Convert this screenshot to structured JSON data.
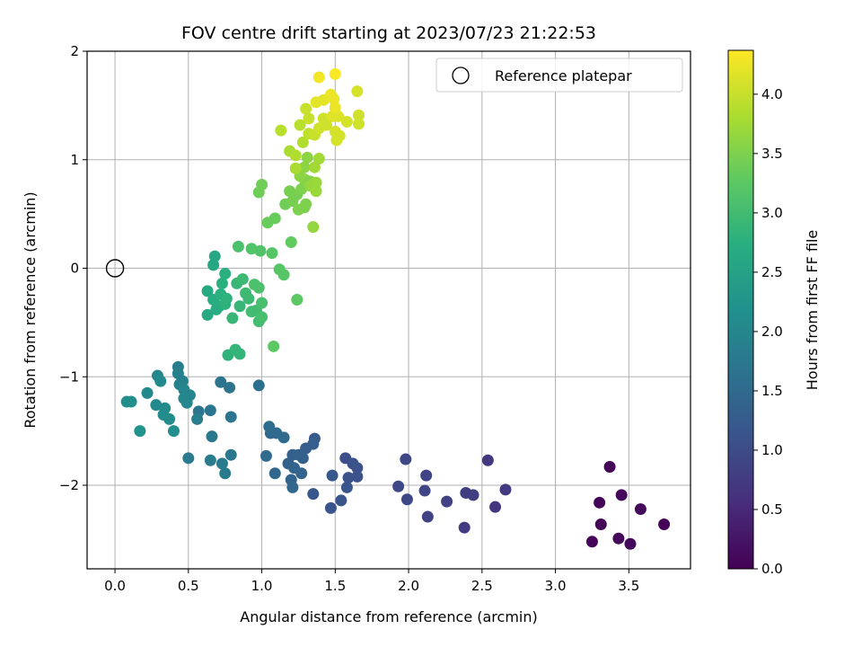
{
  "chart_data": {
    "type": "scatter",
    "title": "FOV centre drift starting at 2023/07/23 21:22:53",
    "xlabel": "Angular distance from reference (arcmin)",
    "ylabel": "Rotation from reference (arcmin)",
    "xlim": [
      -0.19,
      3.92
    ],
    "ylim": [
      -2.77,
      2.0
    ],
    "xticks": [
      0.0,
      0.5,
      1.0,
      1.5,
      2.0,
      2.5,
      3.0,
      3.5
    ],
    "xtick_labels": [
      "0.0",
      "0.5",
      "1.0",
      "1.5",
      "2.0",
      "2.5",
      "3.0",
      "3.5"
    ],
    "yticks": [
      -2,
      -1,
      0,
      1,
      2
    ],
    "ytick_labels": [
      "−2",
      "−1",
      "0",
      "1",
      "2"
    ],
    "grid": true,
    "legend": {
      "placement": "top-right",
      "label": "Reference platepar"
    },
    "reference_point": {
      "x": 0.0,
      "y": 0.0
    },
    "colorbar": {
      "label": "Hours from first FF file",
      "range": [
        0.0,
        4.37
      ],
      "ticks": [
        0.0,
        0.5,
        1.0,
        1.5,
        2.0,
        2.5,
        3.0,
        3.5,
        4.0
      ],
      "tick_labels": [
        "0.0",
        "0.5",
        "1.0",
        "1.5",
        "2.0",
        "2.5",
        "3.0",
        "3.5",
        "4.0"
      ],
      "colormap": "viridis"
    },
    "points": [
      {
        "x": 3.37,
        "y": -1.83,
        "t": 0.05
      },
      {
        "x": 3.3,
        "y": -2.16,
        "t": 0.05
      },
      {
        "x": 3.45,
        "y": -2.09,
        "t": 0.1
      },
      {
        "x": 3.58,
        "y": -2.22,
        "t": 0.1
      },
      {
        "x": 3.31,
        "y": -2.36,
        "t": 0.05
      },
      {
        "x": 3.25,
        "y": -2.52,
        "t": 0.05
      },
      {
        "x": 3.43,
        "y": -2.49,
        "t": 0.1
      },
      {
        "x": 3.51,
        "y": -2.54,
        "t": 0.1
      },
      {
        "x": 3.74,
        "y": -2.36,
        "t": 0.05
      },
      {
        "x": 2.54,
        "y": -1.77,
        "t": 0.7
      },
      {
        "x": 2.66,
        "y": -2.04,
        "t": 0.75
      },
      {
        "x": 2.59,
        "y": -2.2,
        "t": 0.7
      },
      {
        "x": 2.44,
        "y": -2.09,
        "t": 0.8
      },
      {
        "x": 2.39,
        "y": -2.07,
        "t": 0.8
      },
      {
        "x": 2.38,
        "y": -2.39,
        "t": 0.75
      },
      {
        "x": 2.26,
        "y": -2.15,
        "t": 0.85
      },
      {
        "x": 2.13,
        "y": -2.29,
        "t": 0.85
      },
      {
        "x": 2.11,
        "y": -2.05,
        "t": 0.9
      },
      {
        "x": 2.12,
        "y": -1.91,
        "t": 0.9
      },
      {
        "x": 1.98,
        "y": -1.76,
        "t": 0.95
      },
      {
        "x": 1.99,
        "y": -2.13,
        "t": 0.95
      },
      {
        "x": 1.93,
        "y": -2.01,
        "t": 0.95
      },
      {
        "x": 1.57,
        "y": -1.75,
        "t": 1.05
      },
      {
        "x": 1.62,
        "y": -1.8,
        "t": 1.1
      },
      {
        "x": 1.65,
        "y": -1.84,
        "t": 1.1
      },
      {
        "x": 1.65,
        "y": -1.92,
        "t": 1.1
      },
      {
        "x": 1.59,
        "y": -1.93,
        "t": 1.1
      },
      {
        "x": 1.58,
        "y": -2.02,
        "t": 1.15
      },
      {
        "x": 1.54,
        "y": -2.14,
        "t": 1.15
      },
      {
        "x": 1.47,
        "y": -2.21,
        "t": 1.15
      },
      {
        "x": 1.48,
        "y": -1.91,
        "t": 1.2
      },
      {
        "x": 1.35,
        "y": -2.08,
        "t": 1.2
      },
      {
        "x": 1.36,
        "y": -1.57,
        "t": 1.25
      },
      {
        "x": 1.35,
        "y": -1.62,
        "t": 1.3
      },
      {
        "x": 1.3,
        "y": -1.66,
        "t": 1.3
      },
      {
        "x": 1.28,
        "y": -1.75,
        "t": 1.35
      },
      {
        "x": 1.25,
        "y": -1.72,
        "t": 1.35
      },
      {
        "x": 1.21,
        "y": -1.72,
        "t": 1.35
      },
      {
        "x": 1.18,
        "y": -1.8,
        "t": 1.35
      },
      {
        "x": 1.22,
        "y": -1.84,
        "t": 1.4
      },
      {
        "x": 1.27,
        "y": -1.89,
        "t": 1.4
      },
      {
        "x": 1.2,
        "y": -1.95,
        "t": 1.4
      },
      {
        "x": 1.21,
        "y": -2.02,
        "t": 1.45
      },
      {
        "x": 1.09,
        "y": -1.89,
        "t": 1.45
      },
      {
        "x": 1.03,
        "y": -1.73,
        "t": 1.5
      },
      {
        "x": 1.06,
        "y": -1.52,
        "t": 1.5
      },
      {
        "x": 1.1,
        "y": -1.52,
        "t": 1.5
      },
      {
        "x": 1.15,
        "y": -1.56,
        "t": 1.5
      },
      {
        "x": 1.05,
        "y": -1.46,
        "t": 1.55
      },
      {
        "x": 0.98,
        "y": -1.08,
        "t": 1.6
      },
      {
        "x": 0.72,
        "y": -1.05,
        "t": 1.65
      },
      {
        "x": 0.78,
        "y": -1.1,
        "t": 1.65
      },
      {
        "x": 0.57,
        "y": -1.32,
        "t": 1.7
      },
      {
        "x": 0.65,
        "y": -1.31,
        "t": 1.7
      },
      {
        "x": 0.79,
        "y": -1.37,
        "t": 1.7
      },
      {
        "x": 0.66,
        "y": -1.55,
        "t": 1.75
      },
      {
        "x": 0.79,
        "y": -1.72,
        "t": 1.75
      },
      {
        "x": 0.73,
        "y": -1.8,
        "t": 1.8
      },
      {
        "x": 0.75,
        "y": -1.89,
        "t": 1.8
      },
      {
        "x": 0.65,
        "y": -1.77,
        "t": 1.8
      },
      {
        "x": 0.5,
        "y": -1.75,
        "t": 1.8
      },
      {
        "x": 0.56,
        "y": -1.39,
        "t": 1.85
      },
      {
        "x": 0.43,
        "y": -0.91,
        "t": 1.85
      },
      {
        "x": 0.43,
        "y": -0.97,
        "t": 1.9
      },
      {
        "x": 0.46,
        "y": -1.04,
        "t": 1.9
      },
      {
        "x": 0.44,
        "y": -1.07,
        "t": 1.9
      },
      {
        "x": 0.47,
        "y": -1.12,
        "t": 1.95
      },
      {
        "x": 0.51,
        "y": -1.17,
        "t": 1.95
      },
      {
        "x": 0.47,
        "y": -1.2,
        "t": 2.0
      },
      {
        "x": 0.49,
        "y": -1.24,
        "t": 2.0
      },
      {
        "x": 0.29,
        "y": -0.99,
        "t": 2.0
      },
      {
        "x": 0.31,
        "y": -1.04,
        "t": 2.05
      },
      {
        "x": 0.22,
        "y": -1.15,
        "t": 2.05
      },
      {
        "x": 0.28,
        "y": -1.26,
        "t": 2.05
      },
      {
        "x": 0.34,
        "y": -1.29,
        "t": 2.1
      },
      {
        "x": 0.33,
        "y": -1.35,
        "t": 2.1
      },
      {
        "x": 0.37,
        "y": -1.39,
        "t": 2.1
      },
      {
        "x": 0.4,
        "y": -1.5,
        "t": 2.15
      },
      {
        "x": 0.08,
        "y": -1.23,
        "t": 2.15
      },
      {
        "x": 0.11,
        "y": -1.23,
        "t": 2.15
      },
      {
        "x": 0.17,
        "y": -1.5,
        "t": 2.2
      },
      {
        "x": 0.68,
        "y": 0.11,
        "t": 2.6
      },
      {
        "x": 0.67,
        "y": 0.03,
        "t": 2.6
      },
      {
        "x": 0.63,
        "y": -0.21,
        "t": 2.65
      },
      {
        "x": 0.63,
        "y": -0.43,
        "t": 2.65
      },
      {
        "x": 0.67,
        "y": -0.29,
        "t": 2.7
      },
      {
        "x": 0.69,
        "y": -0.38,
        "t": 2.7
      },
      {
        "x": 0.71,
        "y": -0.35,
        "t": 2.7
      },
      {
        "x": 0.72,
        "y": -0.24,
        "t": 2.75
      },
      {
        "x": 0.73,
        "y": -0.14,
        "t": 2.75
      },
      {
        "x": 0.75,
        "y": -0.05,
        "t": 2.75
      },
      {
        "x": 0.76,
        "y": -0.28,
        "t": 2.8
      },
      {
        "x": 0.75,
        "y": -0.33,
        "t": 2.8
      },
      {
        "x": 0.77,
        "y": -0.8,
        "t": 2.8
      },
      {
        "x": 0.82,
        "y": -0.75,
        "t": 2.85
      },
      {
        "x": 0.85,
        "y": -0.79,
        "t": 2.85
      },
      {
        "x": 0.8,
        "y": -0.46,
        "t": 2.9
      },
      {
        "x": 0.85,
        "y": -0.35,
        "t": 2.9
      },
      {
        "x": 0.83,
        "y": -0.14,
        "t": 2.9
      },
      {
        "x": 0.87,
        "y": -0.1,
        "t": 2.95
      },
      {
        "x": 0.89,
        "y": -0.23,
        "t": 2.95
      },
      {
        "x": 0.91,
        "y": -0.28,
        "t": 2.95
      },
      {
        "x": 0.93,
        "y": -0.4,
        "t": 3.0
      },
      {
        "x": 0.96,
        "y": -0.39,
        "t": 3.0
      },
      {
        "x": 0.98,
        "y": -0.49,
        "t": 3.0
      },
      {
        "x": 1.0,
        "y": -0.45,
        "t": 3.05
      },
      {
        "x": 1.0,
        "y": -0.32,
        "t": 3.05
      },
      {
        "x": 0.98,
        "y": -0.18,
        "t": 3.1
      },
      {
        "x": 0.95,
        "y": -0.15,
        "t": 3.1
      },
      {
        "x": 0.84,
        "y": 0.2,
        "t": 3.1
      },
      {
        "x": 0.93,
        "y": 0.18,
        "t": 3.15
      },
      {
        "x": 0.99,
        "y": 0.16,
        "t": 3.15
      },
      {
        "x": 1.07,
        "y": 0.14,
        "t": 3.2
      },
      {
        "x": 1.12,
        "y": -0.01,
        "t": 3.2
      },
      {
        "x": 1.15,
        "y": -0.06,
        "t": 3.2
      },
      {
        "x": 1.08,
        "y": -0.72,
        "t": 3.25
      },
      {
        "x": 1.24,
        "y": -0.29,
        "t": 3.25
      },
      {
        "x": 1.2,
        "y": 0.24,
        "t": 3.3
      },
      {
        "x": 1.04,
        "y": 0.42,
        "t": 3.35
      },
      {
        "x": 1.09,
        "y": 0.46,
        "t": 3.35
      },
      {
        "x": 0.98,
        "y": 0.7,
        "t": 3.4
      },
      {
        "x": 1.0,
        "y": 0.77,
        "t": 3.4
      },
      {
        "x": 1.16,
        "y": 0.59,
        "t": 3.4
      },
      {
        "x": 1.19,
        "y": 0.71,
        "t": 3.45
      },
      {
        "x": 1.21,
        "y": 0.62,
        "t": 3.45
      },
      {
        "x": 1.24,
        "y": 0.68,
        "t": 3.45
      },
      {
        "x": 1.27,
        "y": 0.73,
        "t": 3.5
      },
      {
        "x": 1.29,
        "y": 0.56,
        "t": 3.5
      },
      {
        "x": 1.3,
        "y": 0.59,
        "t": 3.5
      },
      {
        "x": 1.25,
        "y": 0.54,
        "t": 3.5
      },
      {
        "x": 1.33,
        "y": 0.8,
        "t": 3.55
      },
      {
        "x": 1.29,
        "y": 0.82,
        "t": 3.55
      },
      {
        "x": 1.26,
        "y": 0.85,
        "t": 3.6
      },
      {
        "x": 1.29,
        "y": 0.93,
        "t": 3.6
      },
      {
        "x": 1.31,
        "y": 1.02,
        "t": 3.6
      },
      {
        "x": 1.33,
        "y": 0.76,
        "t": 3.65
      },
      {
        "x": 1.35,
        "y": 0.38,
        "t": 3.65
      },
      {
        "x": 1.37,
        "y": 0.71,
        "t": 3.7
      },
      {
        "x": 1.37,
        "y": 0.79,
        "t": 3.7
      },
      {
        "x": 1.36,
        "y": 0.93,
        "t": 3.75
      },
      {
        "x": 1.39,
        "y": 1.01,
        "t": 3.75
      },
      {
        "x": 1.23,
        "y": 0.92,
        "t": 3.8
      },
      {
        "x": 1.19,
        "y": 1.08,
        "t": 3.8
      },
      {
        "x": 1.23,
        "y": 1.04,
        "t": 3.85
      },
      {
        "x": 1.28,
        "y": 1.16,
        "t": 3.85
      },
      {
        "x": 1.13,
        "y": 1.27,
        "t": 3.9
      },
      {
        "x": 1.26,
        "y": 1.32,
        "t": 3.9
      },
      {
        "x": 1.32,
        "y": 1.24,
        "t": 3.95
      },
      {
        "x": 1.3,
        "y": 1.47,
        "t": 4.0
      },
      {
        "x": 1.32,
        "y": 1.38,
        "t": 4.0
      },
      {
        "x": 1.36,
        "y": 1.23,
        "t": 4.0
      },
      {
        "x": 1.39,
        "y": 1.29,
        "t": 4.05
      },
      {
        "x": 1.42,
        "y": 1.38,
        "t": 4.05
      },
      {
        "x": 1.44,
        "y": 1.32,
        "t": 4.05
      },
      {
        "x": 1.5,
        "y": 1.26,
        "t": 4.1
      },
      {
        "x": 1.51,
        "y": 1.18,
        "t": 4.1
      },
      {
        "x": 1.53,
        "y": 1.22,
        "t": 4.1
      },
      {
        "x": 1.48,
        "y": 1.4,
        "t": 4.15
      },
      {
        "x": 1.52,
        "y": 1.4,
        "t": 4.15
      },
      {
        "x": 1.58,
        "y": 1.35,
        "t": 4.1
      },
      {
        "x": 1.66,
        "y": 1.33,
        "t": 4.05
      },
      {
        "x": 1.66,
        "y": 1.41,
        "t": 4.05
      },
      {
        "x": 1.65,
        "y": 1.63,
        "t": 4.1
      },
      {
        "x": 1.37,
        "y": 1.53,
        "t": 4.2
      },
      {
        "x": 1.42,
        "y": 1.55,
        "t": 4.2
      },
      {
        "x": 1.47,
        "y": 1.6,
        "t": 4.25
      },
      {
        "x": 1.49,
        "y": 1.56,
        "t": 4.25
      },
      {
        "x": 1.5,
        "y": 1.48,
        "t": 4.25
      },
      {
        "x": 1.39,
        "y": 1.76,
        "t": 4.3
      },
      {
        "x": 1.5,
        "y": 1.79,
        "t": 4.35
      }
    ]
  }
}
